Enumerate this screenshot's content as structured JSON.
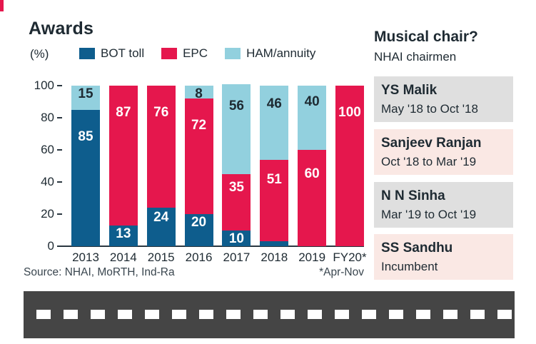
{
  "theme": {
    "accent_red": "#e5174d",
    "text_dark": "#1e2a32",
    "road_gray": "#454545",
    "card_gray": "#dfdfdf",
    "card_pink": "#fae8e4"
  },
  "chart": {
    "title": "Awards",
    "unit_label": "(%)",
    "source": "Source: NHAI, MoRTH, Ind-Ra",
    "footnote": "*Apr-Nov"
  },
  "chart_data": {
    "type": "bar",
    "stacked": true,
    "title": "Awards",
    "ylabel": "(%)",
    "ylim": [
      0,
      100
    ],
    "yticks": [
      0,
      20,
      40,
      60,
      80,
      100
    ],
    "grid": false,
    "legend_position": "top",
    "categories": [
      "2013",
      "2014",
      "2015",
      "2016",
      "2017",
      "2018",
      "2019",
      "FY20*"
    ],
    "series": [
      {
        "name": "BOT toll",
        "color": "#0e5d8d",
        "label_color": "#ffffff",
        "values": [
          85,
          13,
          24,
          20,
          10,
          3,
          0,
          0
        ]
      },
      {
        "name": "EPC",
        "color": "#e5174d",
        "label_color": "#ffffff",
        "values": [
          0,
          87,
          76,
          72,
          35,
          51,
          60,
          100
        ]
      },
      {
        "name": "HAM/annuity",
        "color": "#92d0de",
        "label_color": "#1e2a32",
        "values": [
          15,
          0,
          0,
          8,
          56,
          46,
          40,
          0
        ]
      }
    ]
  },
  "sidebar": {
    "title": "Musical chair?",
    "subtitle": "NHAI chairmen",
    "chairmen": [
      {
        "name": "YS Malik",
        "tenure": "May '18 to Oct '18",
        "bg": "gray"
      },
      {
        "name": "Sanjeev Ranjan",
        "tenure": "Oct '18 to Mar '19",
        "bg": "pink"
      },
      {
        "name": "N N Sinha",
        "tenure": "Mar '19 to Oct '19",
        "bg": "gray"
      },
      {
        "name": "SS Sandhu",
        "tenure": "Incumbent",
        "bg": "pink"
      }
    ]
  }
}
